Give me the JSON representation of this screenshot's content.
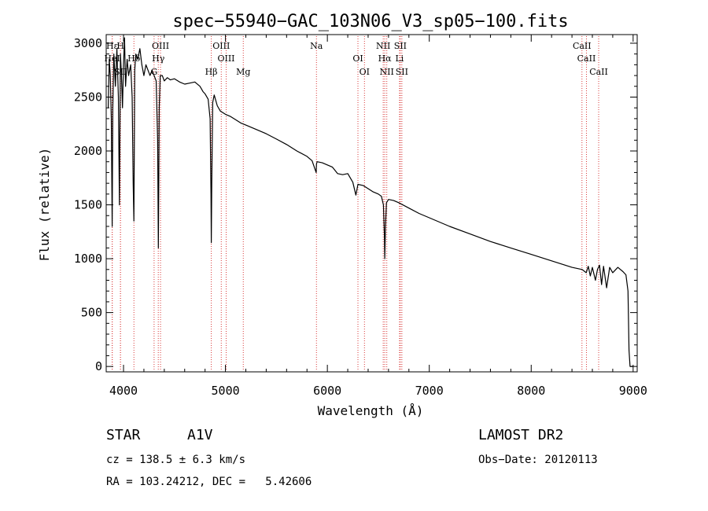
{
  "chart_data": {
    "type": "line",
    "title": "spec−55940−GAC_103N06_V3_sp05−100.fits",
    "xlabel": "Wavelength (Å)",
    "ylabel": "Flux (relative)",
    "xlim": [
      3830,
      9040
    ],
    "ylim": [
      -50,
      3080
    ],
    "xticks": [
      4000,
      5000,
      6000,
      7000,
      8000,
      9000
    ],
    "yticks": [
      0,
      500,
      1000,
      1500,
      2000,
      2500,
      3000
    ],
    "grid": false,
    "series": [
      {
        "x": [
          3850,
          3860,
          3870,
          3880,
          3889,
          3895,
          3905,
          3920,
          3935,
          3950,
          3960,
          3970,
          3980,
          3990,
          4000,
          4010,
          4020,
          4035,
          4050,
          4070,
          4085,
          4095,
          4102,
          4110,
          4120,
          4140,
          4160,
          4180,
          4200,
          4220,
          4240,
          4260,
          4280,
          4300,
          4320,
          4335,
          4342,
          4350,
          4360,
          4380,
          4400,
          4430,
          4460,
          4500,
          4550,
          4600,
          4650,
          4700,
          4750,
          4780,
          4800,
          4830,
          4850,
          4858,
          4861,
          4866,
          4875,
          4890,
          4920,
          4950,
          5000,
          5050,
          5100,
          5150,
          5200,
          5300,
          5400,
          5500,
          5600,
          5700,
          5800,
          5850,
          5890,
          5893,
          5900,
          5950,
          6000,
          6050,
          6100,
          6150,
          6200,
          6250,
          6280,
          6300,
          6350,
          6400,
          6450,
          6500,
          6530,
          6550,
          6560,
          6563,
          6570,
          6580,
          6600,
          6650,
          6700,
          6800,
          6900,
          7000,
          7200,
          7400,
          7600,
          7800,
          8000,
          8200,
          8400,
          8500,
          8540,
          8560,
          8580,
          8600,
          8630,
          8650,
          8670,
          8690,
          8710,
          8740,
          8770,
          8800,
          8850,
          8900,
          8930,
          8950,
          8960,
          8970,
          8980,
          8990,
          9000
        ],
        "y": [
          2400,
          2850,
          2700,
          2300,
          1300,
          2400,
          2900,
          2600,
          2950,
          2500,
          1500,
          2900,
          2700,
          2400,
          2800,
          3050,
          2600,
          2850,
          2700,
          2800,
          2500,
          1700,
          1350,
          2750,
          2900,
          2850,
          2950,
          2800,
          2700,
          2800,
          2750,
          2700,
          2750,
          2700,
          2650,
          2100,
          1100,
          2400,
          2700,
          2700,
          2650,
          2680,
          2660,
          2670,
          2640,
          2620,
          2630,
          2640,
          2600,
          2550,
          2530,
          2480,
          2300,
          1600,
          1150,
          1700,
          2450,
          2520,
          2420,
          2370,
          2340,
          2320,
          2290,
          2260,
          2240,
          2200,
          2160,
          2110,
          2060,
          2000,
          1950,
          1910,
          1800,
          1880,
          1900,
          1890,
          1870,
          1850,
          1790,
          1780,
          1790,
          1710,
          1590,
          1690,
          1680,
          1650,
          1620,
          1600,
          1580,
          1500,
          1200,
          1000,
          1300,
          1520,
          1550,
          1540,
          1520,
          1470,
          1420,
          1380,
          1300,
          1230,
          1160,
          1100,
          1040,
          980,
          920,
          900,
          870,
          930,
          840,
          920,
          800,
          900,
          940,
          760,
          930,
          730,
          920,
          870,
          920,
          880,
          850,
          700,
          150,
          0,
          0,
          0,
          0
        ],
        "color": "#000000"
      }
    ],
    "spectral_lines": [
      {
        "label": "Hε",
        "x": 3889
      },
      {
        "label": "HeI",
        "x": 3889
      },
      {
        "label": "SII",
        "x": 3970
      },
      {
        "label": "H",
        "x": 3970
      },
      {
        "label": "Hδ",
        "x": 4102
      },
      {
        "label": "G",
        "x": 4300
      },
      {
        "label": "OIII",
        "x": 4363
      },
      {
        "label": "Hγ",
        "x": 4341
      },
      {
        "label": "Hβ",
        "x": 4861
      },
      {
        "label": "OIII",
        "x": 4959
      },
      {
        "label": "OIII",
        "x": 5007
      },
      {
        "label": "Mg",
        "x": 5175
      },
      {
        "label": "Na",
        "x": 5893
      },
      {
        "label": "OI",
        "x": 6300
      },
      {
        "label": "OI",
        "x": 6364
      },
      {
        "label": "NII",
        "x": 6548
      },
      {
        "label": "Hα",
        "x": 6563
      },
      {
        "label": "NII",
        "x": 6583
      },
      {
        "label": "SII",
        "x": 6716
      },
      {
        "label": "Li",
        "x": 6708
      },
      {
        "label": "SII",
        "x": 6731
      },
      {
        "label": "CaII",
        "x": 8498
      },
      {
        "label": "CaII",
        "x": 8542
      },
      {
        "label": "CaII",
        "x": 8662
      }
    ],
    "line_color": "#d93a3a"
  },
  "footer": {
    "object_type": "STAR",
    "subclass": "A1V",
    "survey": "LAMOST DR2",
    "redshift": "cz = 138.5 ± 6.3 km/s",
    "obs_date": "Obs−Date: 20120113",
    "coords": "RA = 103.24212, DEC =   5.42606"
  }
}
